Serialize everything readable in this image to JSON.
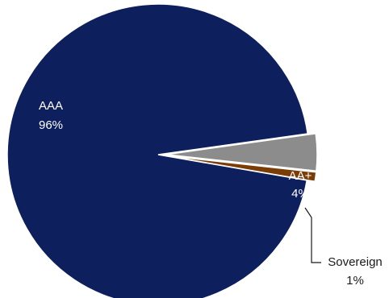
{
  "chart_data": {
    "type": "pie",
    "slices": [
      {
        "label": "AAA",
        "value": 96,
        "display": "96%",
        "color": "#0d1f5c",
        "label_color": "#ffffff"
      },
      {
        "label": "AA+",
        "value": 4,
        "display": "4%",
        "color": "#8c8c8c",
        "label_color": "#ffffff",
        "exploded": true
      },
      {
        "label": "Sovereign",
        "value": 1,
        "display": "1%",
        "color": "#7a3d06",
        "label_color": "#1a1a1a",
        "exploded": true,
        "leader_line": true
      }
    ]
  }
}
